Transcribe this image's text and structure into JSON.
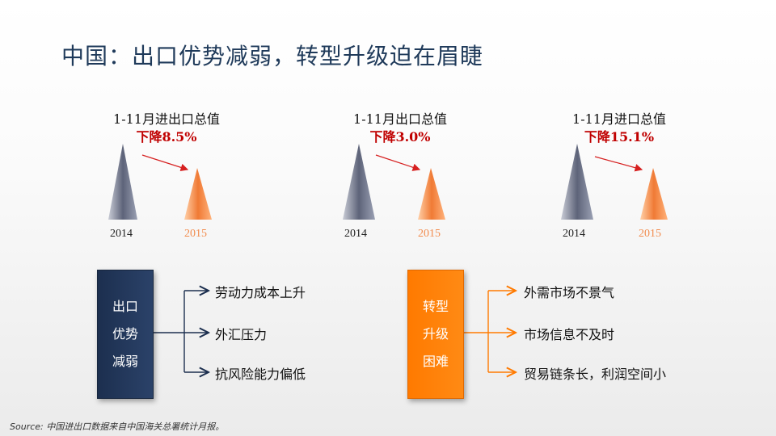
{
  "slide": {
    "title": "中国：出口优势减弱，转型升级迫在眉睫",
    "source": "Source: 中国进出口数据来自中国海关总署统计月报。"
  },
  "comparisons": [
    {
      "label": "1-11月进出口总值",
      "change": "下降8.5%",
      "year_a": "2014",
      "year_b": "2015"
    },
    {
      "label": "1-11月出口总值",
      "change": "下降3.0%",
      "year_a": "2014",
      "year_b": "2015"
    },
    {
      "label": "1-11月进口总值",
      "change": "下降15.1%",
      "year_a": "2014",
      "year_b": "2015"
    }
  ],
  "left_box": {
    "lines": [
      "出口",
      "优势",
      "减弱"
    ],
    "items": [
      "劳动力成本上升",
      "外汇压力",
      "抗风险能力偏低"
    ]
  },
  "right_box": {
    "lines": [
      "转型",
      "升级",
      "困难"
    ],
    "items": [
      "外需市场不景气",
      "市场信息不及时",
      "贸易链条长，利润空间小"
    ]
  },
  "colors": {
    "title": "#1f3a5a",
    "navy": "#1c2f4f",
    "orange": "#ff7a00",
    "change_red": "#c00000",
    "triangle_2015": "#f28c4e"
  }
}
